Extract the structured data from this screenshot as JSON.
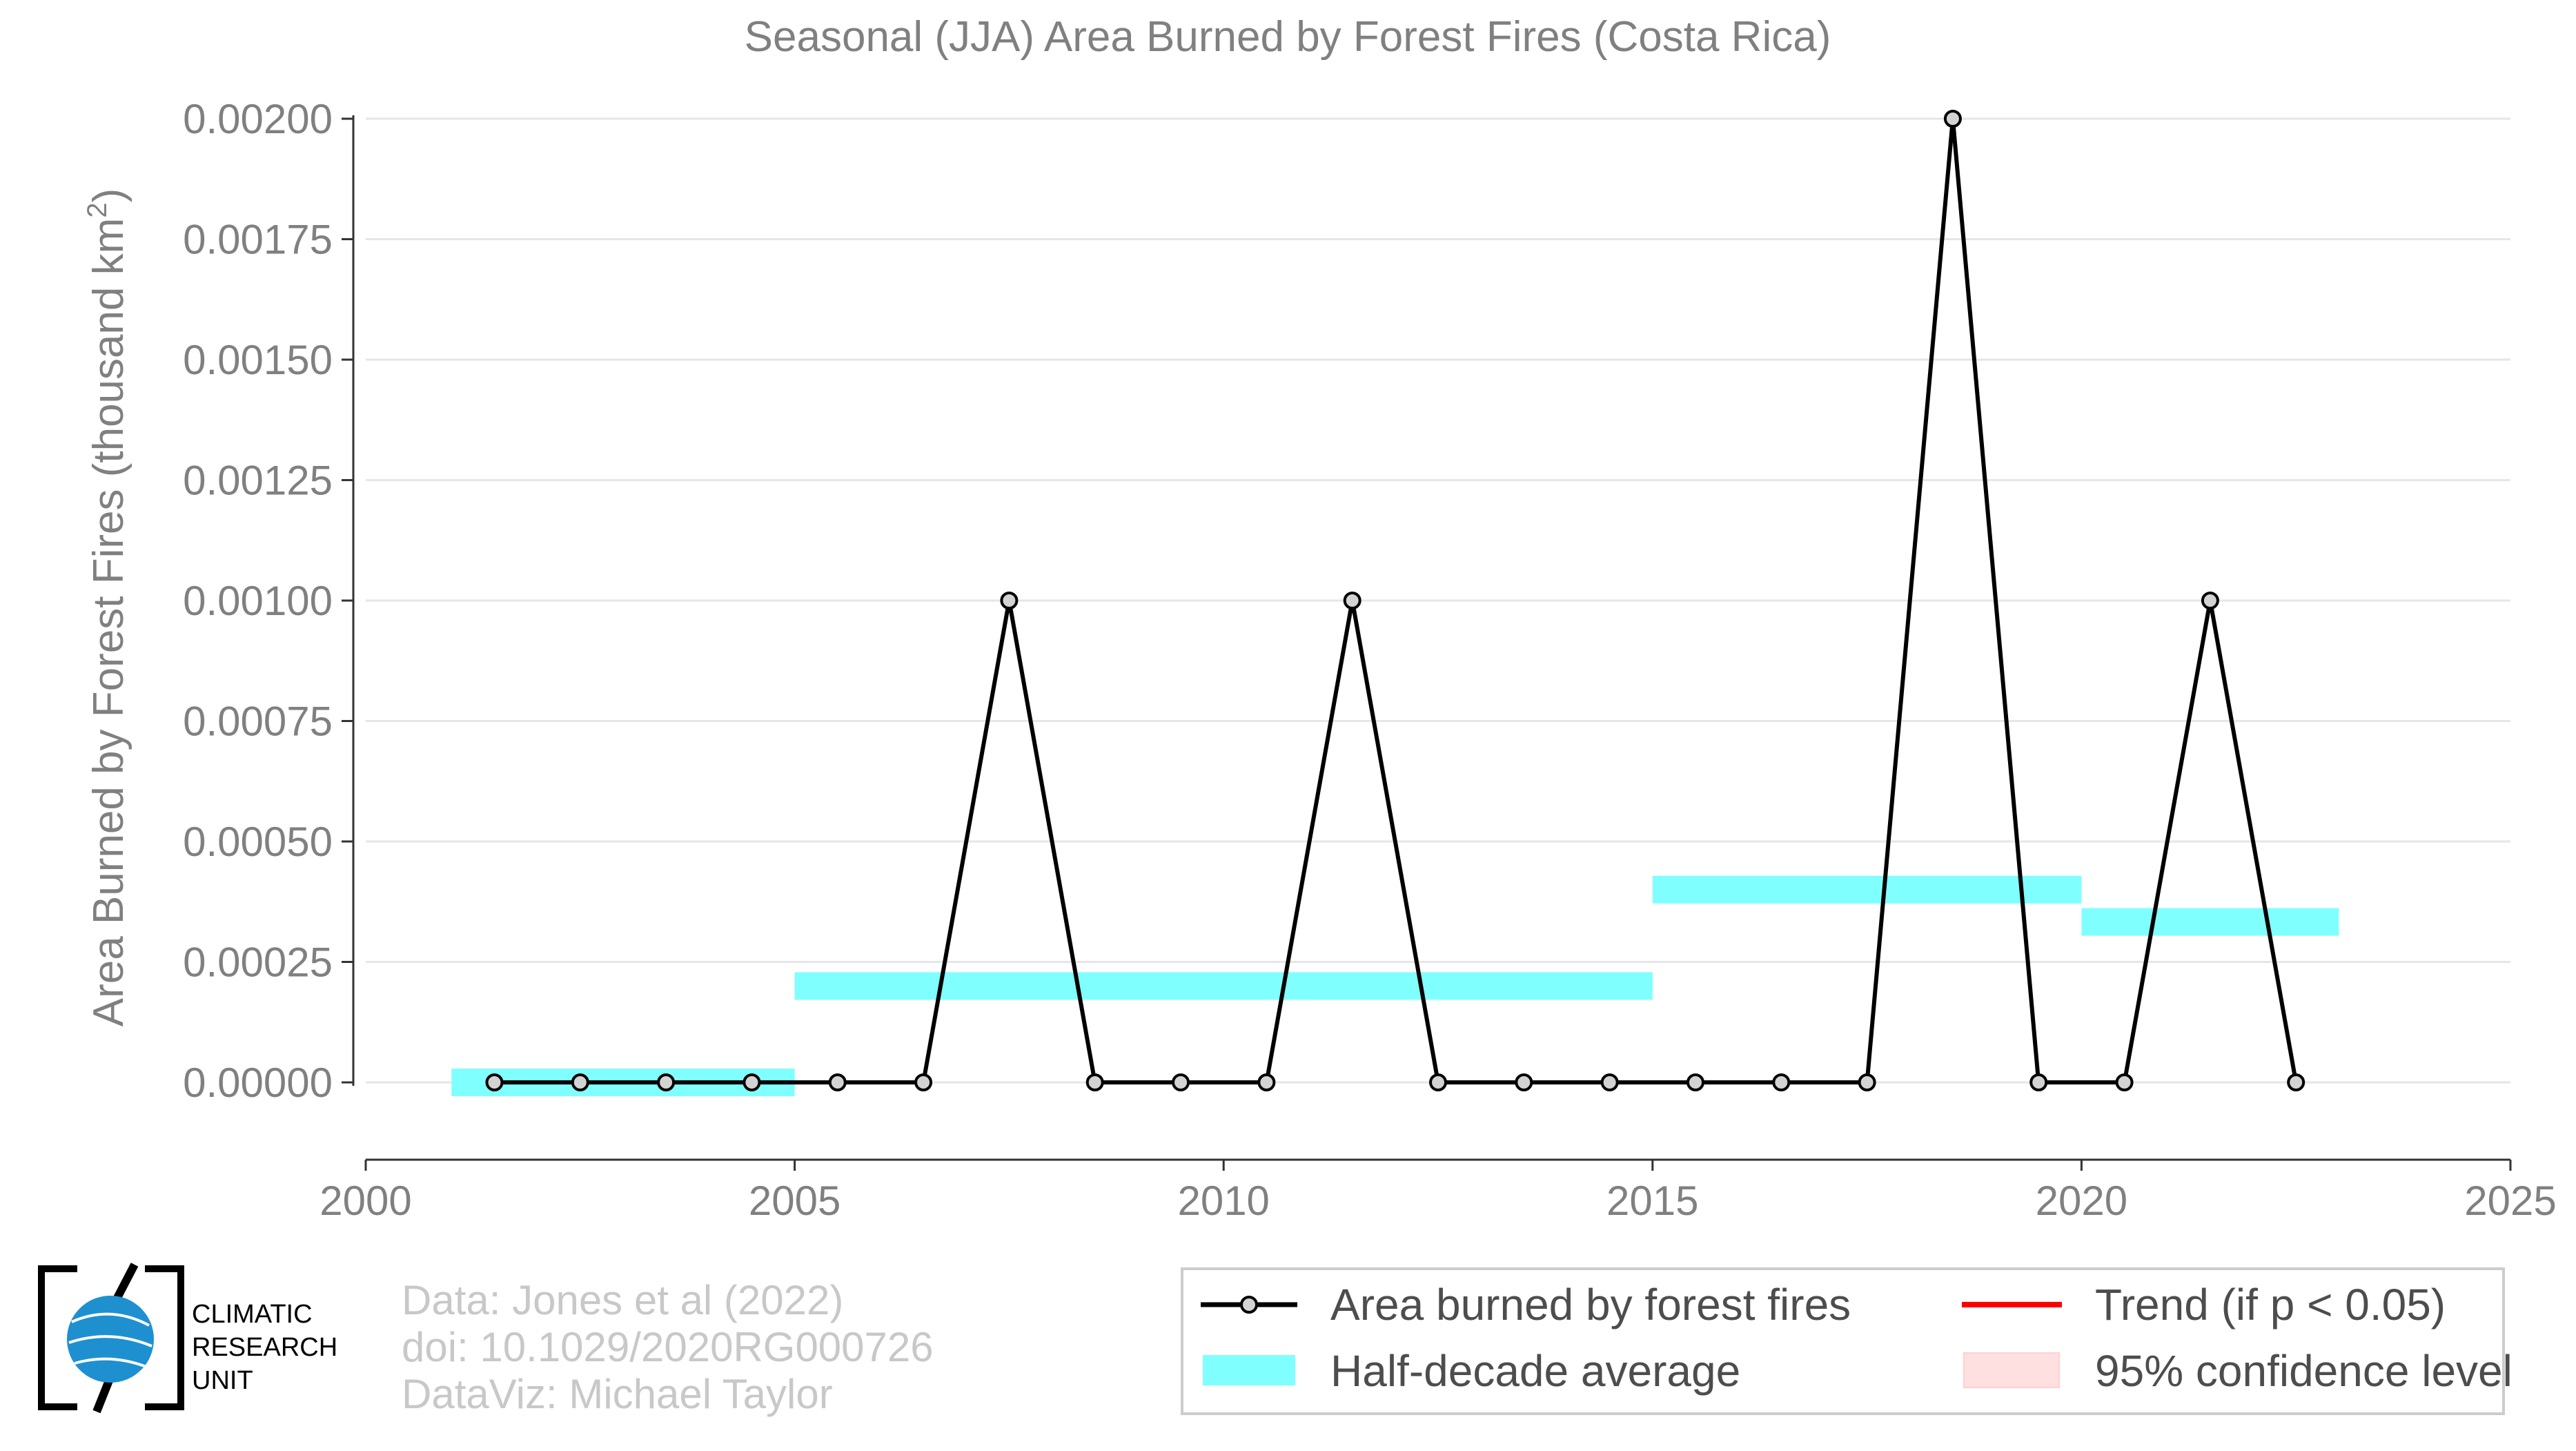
{
  "chart_data": {
    "type": "line",
    "title": "Seasonal (JJA) Area Burned by Forest Fires (Costa Rica)",
    "ylabel_main": "Area Burned by Forest Fires (thousand km",
    "ylabel_sup": "2",
    "ylabel_close": ")",
    "xlim": [
      2000,
      2025
    ],
    "ylim": [
      -0.00016,
      0.002
    ],
    "x_ticks": [
      2000,
      2005,
      2010,
      2015,
      2020,
      2025
    ],
    "x_tick_labels": [
      "2000",
      "2005",
      "2010",
      "2015",
      "2020",
      "2025"
    ],
    "y_ticks": [
      0,
      0.00025,
      0.0005,
      0.00075,
      0.001,
      0.00125,
      0.0015,
      0.00175,
      0.002
    ],
    "y_tick_labels": [
      "0.00000",
      "0.00025",
      "0.00050",
      "0.00075",
      "0.00100",
      "0.00125",
      "0.00150",
      "0.00175",
      "0.00200"
    ],
    "grid": "horizontal",
    "series": [
      {
        "name": "Area burned by forest fires",
        "color": "#000000",
        "marker_fill": "#d3d3d3",
        "x": [
          2001.5,
          2002.5,
          2003.5,
          2004.5,
          2005.5,
          2006.5,
          2007.5,
          2008.5,
          2009.5,
          2010.5,
          2011.5,
          2012.5,
          2013.5,
          2014.5,
          2015.5,
          2016.5,
          2017.5,
          2018.5,
          2019.5,
          2020.5,
          2021.5,
          2022.5
        ],
        "y": [
          0,
          0,
          0,
          0,
          0,
          0,
          0.001,
          0,
          0,
          0,
          0.001,
          0,
          0,
          0,
          0,
          0,
          0,
          0.002,
          0,
          0,
          0.001,
          0
        ]
      }
    ],
    "half_decade_average": {
      "name": "Half-decade average",
      "color": "#80ffff",
      "segments": [
        {
          "x_start": 2001,
          "x_end": 2005,
          "value": 0.0
        },
        {
          "x_start": 2005,
          "x_end": 2015,
          "value": 0.0002
        },
        {
          "x_start": 2015,
          "x_end": 2020,
          "value": 0.0004
        },
        {
          "x_start": 2020,
          "x_end": 2023,
          "value": 0.000333
        }
      ]
    },
    "legend": {
      "placement": "bottom-right",
      "items": [
        {
          "label": "Area burned by forest fires",
          "kind": "line-marker",
          "color": "#000000"
        },
        {
          "label": "Trend (if p < 0.05)",
          "kind": "line",
          "color": "#ff0000"
        },
        {
          "label": "Half-decade average",
          "kind": "band",
          "color": "#80ffff"
        },
        {
          "label": "95% confidence level",
          "kind": "band",
          "color": "#ffe0e0"
        }
      ]
    }
  },
  "credits": {
    "line1": "Data: Jones et al (2022)",
    "line2": "doi: 10.1029/2020RG000726",
    "line3": "DataViz: Michael Taylor"
  },
  "logo": {
    "line1": "CLIMATIC",
    "line2": "RESEARCH",
    "line3": "UNIT"
  }
}
